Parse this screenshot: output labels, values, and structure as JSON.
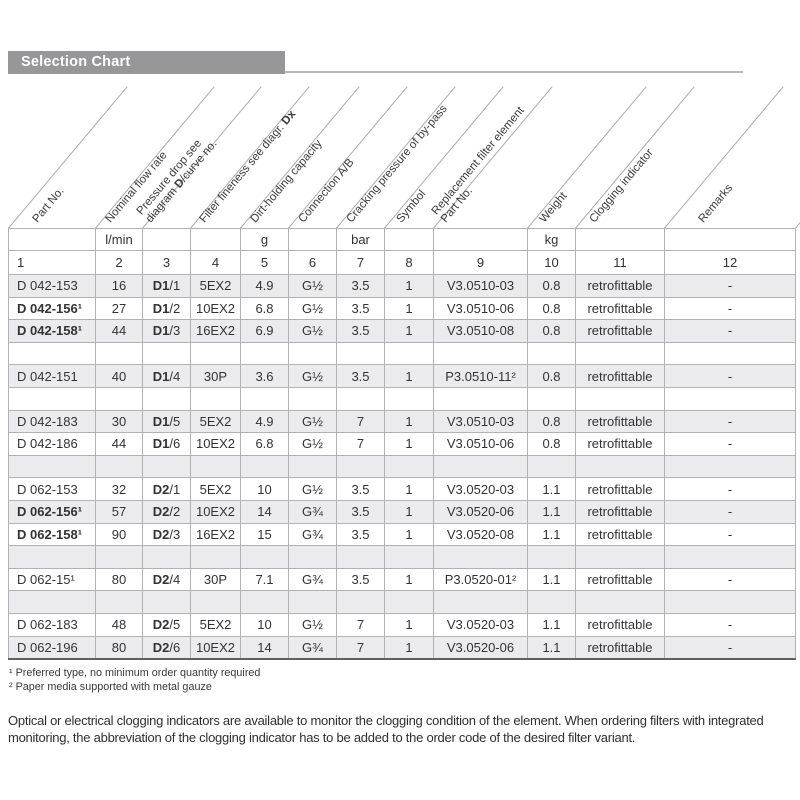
{
  "section_header": {
    "label": "Selection Chart"
  },
  "table": {
    "columns": [
      {
        "key": "part-no",
        "lines": [
          [
            {
              "t": "Part No."
            }
          ]
        ]
      },
      {
        "key": "nominal-flow-rate",
        "lines": [
          [
            {
              "t": "Nominal flow rate"
            }
          ]
        ]
      },
      {
        "key": "pressure-drop",
        "lines": [
          [
            {
              "t": "Pressure drop see"
            }
          ],
          [
            {
              "t": "diagram "
            },
            {
              "t": "D",
              "b": true
            },
            {
              "t": "/curve no."
            }
          ]
        ]
      },
      {
        "key": "filter-fineness",
        "lines": [
          [
            {
              "t": "Filter fineness see diagr. "
            },
            {
              "t": "Dx",
              "b": true
            }
          ]
        ]
      },
      {
        "key": "dirt-holding-capacity",
        "lines": [
          [
            {
              "t": "Dirt-holding capacity"
            }
          ]
        ]
      },
      {
        "key": "connection",
        "lines": [
          [
            {
              "t": "Connection A/B"
            }
          ]
        ]
      },
      {
        "key": "cracking-pressure",
        "lines": [
          [
            {
              "t": "Cracking pressure of by-pass"
            }
          ]
        ]
      },
      {
        "key": "symbol",
        "lines": [
          [
            {
              "t": "Symbol"
            }
          ]
        ]
      },
      {
        "key": "replacement-element",
        "lines": [
          [
            {
              "t": "Replacement filter element"
            }
          ],
          [
            {
              "t": "Part No."
            }
          ]
        ]
      },
      {
        "key": "weight",
        "lines": [
          [
            {
              "t": "Weight"
            }
          ]
        ]
      },
      {
        "key": "clogging-indicator",
        "lines": [
          [
            {
              "t": "Clogging indicator"
            }
          ]
        ]
      },
      {
        "key": "remarks",
        "lines": [
          [
            {
              "t": "Remarks"
            }
          ]
        ]
      }
    ],
    "units_row": [
      "",
      "l/min",
      "",
      "",
      "g",
      "",
      "bar",
      "",
      "",
      "kg",
      "",
      ""
    ],
    "number_row": [
      "1",
      "2",
      "3",
      "4",
      "5",
      "6",
      "7",
      "8",
      "9",
      "10",
      "11",
      "12"
    ],
    "rows": [
      {
        "cells": [
          "D 042-153",
          "16",
          "D1/1",
          "5EX2",
          "4.9",
          "G½",
          "3.5",
          "1",
          "V3.0510-03",
          "0.8",
          "retrofittable",
          "-"
        ],
        "shaded": true,
        "bold_part": false
      },
      {
        "cells": [
          "D 042-156¹",
          "27",
          "D1/2",
          "10EX2",
          "6.8",
          "G½",
          "3.5",
          "1",
          "V3.0510-06",
          "0.8",
          "retrofittable",
          "-"
        ],
        "shaded": false,
        "bold_part": true
      },
      {
        "cells": [
          "D 042-158¹",
          "44",
          "D1/3",
          "16EX2",
          "6.9",
          "G½",
          "3.5",
          "1",
          "V3.0510-08",
          "0.8",
          "retrofittable",
          "-"
        ],
        "shaded": true,
        "bold_part": true
      },
      {
        "cells": [],
        "shaded": false
      },
      {
        "cells": [
          "D 042-151",
          "40",
          "D1/4",
          "30P",
          "3.6",
          "G½",
          "3.5",
          "1",
          "P3.0510-11²",
          "0.8",
          "retrofittable",
          "-"
        ],
        "shaded": true,
        "bold_part": false
      },
      {
        "cells": [],
        "shaded": false
      },
      {
        "cells": [
          "D 042-183",
          "30",
          "D1/5",
          "5EX2",
          "4.9",
          "G½",
          "7",
          "1",
          "V3.0510-03",
          "0.8",
          "retrofittable",
          "-"
        ],
        "shaded": true,
        "bold_part": false
      },
      {
        "cells": [
          "D 042-186",
          "44",
          "D1/6",
          "10EX2",
          "6.8",
          "G½",
          "7",
          "1",
          "V3.0510-06",
          "0.8",
          "retrofittable",
          "-"
        ],
        "shaded": false,
        "bold_part": false
      },
      {
        "cells": [],
        "shaded": true
      },
      {
        "cells": [
          "D 062-153",
          "32",
          "D2/1",
          "5EX2",
          "10",
          "G½",
          "3.5",
          "1",
          "V3.0520-03",
          "1.1",
          "retrofittable",
          "-"
        ],
        "shaded": false,
        "bold_part": false
      },
      {
        "cells": [
          "D 062-156¹",
          "57",
          "D2/2",
          "10EX2",
          "14",
          "G¾",
          "3.5",
          "1",
          "V3.0520-06",
          "1.1",
          "retrofittable",
          "-"
        ],
        "shaded": true,
        "bold_part": true
      },
      {
        "cells": [
          "D 062-158¹",
          "90",
          "D2/3",
          "16EX2",
          "15",
          "G¾",
          "3.5",
          "1",
          "V3.0520-08",
          "1.1",
          "retrofittable",
          "-"
        ],
        "shaded": false,
        "bold_part": true
      },
      {
        "cells": [],
        "shaded": true
      },
      {
        "cells": [
          "D 062-15¹",
          "80",
          "D2/4",
          "30P",
          "7.1",
          "G¾",
          "3.5",
          "1",
          "P3.0520-01²",
          "1.1",
          "retrofittable",
          "-"
        ],
        "shaded": false,
        "bold_part": false
      },
      {
        "cells": [],
        "shaded": true
      },
      {
        "cells": [
          "D 062-183",
          "48",
          "D2/5",
          "5EX2",
          "10",
          "G½",
          "7",
          "1",
          "V3.0520-03",
          "1.1",
          "retrofittable",
          "-"
        ],
        "shaded": false,
        "bold_part": false
      },
      {
        "cells": [
          "D 062-196",
          "80",
          "D2/6",
          "10EX2",
          "14",
          "G¾",
          "7",
          "1",
          "V3.0520-06",
          "1.1",
          "retrofittable",
          "-"
        ],
        "shaded": true,
        "bold_part": false
      }
    ]
  },
  "footnotes": [
    "¹ Preferred type, no minimum order quantity required",
    "² Paper media supported with metal gauze"
  ],
  "note_paragraph": "Optical or electrical clogging indicators are available to monitor the clogging condition of the element. When ordering filters with integrated monitoring, the abbreviation of the clogging indicator has to be added to the order code of the desired filter variant."
}
